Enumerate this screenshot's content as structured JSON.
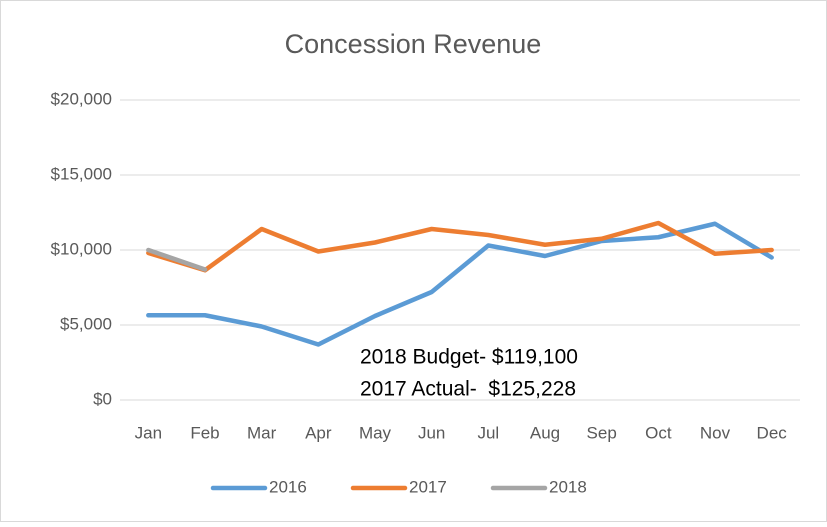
{
  "chart_data": {
    "type": "line",
    "title": "Concession Revenue",
    "categories": [
      "Jan",
      "Feb",
      "Mar",
      "Apr",
      "May",
      "Jun",
      "Jul",
      "Aug",
      "Sep",
      "Oct",
      "Nov",
      "Dec"
    ],
    "series": [
      {
        "name": "2016",
        "color": "#5b9bd5",
        "values": [
          5650,
          5650,
          4900,
          3700,
          5600,
          7200,
          10300,
          9600,
          10600,
          10850,
          11750,
          9500
        ]
      },
      {
        "name": "2017",
        "color": "#ed7d31",
        "values": [
          9800,
          8650,
          11400,
          9900,
          10500,
          11400,
          11000,
          10350,
          10750,
          11800,
          9750,
          10000
        ]
      },
      {
        "name": "2018",
        "color": "#a5a5a5",
        "values": [
          10000,
          8700,
          null,
          null,
          null,
          null,
          null,
          null,
          null,
          null,
          null,
          null
        ]
      }
    ],
    "ylim": [
      0,
      20000
    ],
    "yticks": [
      {
        "value": 0,
        "label": "$0"
      },
      {
        "value": 5000,
        "label": "$5,000"
      },
      {
        "value": 10000,
        "label": "$10,000"
      },
      {
        "value": 15000,
        "label": "$15,000"
      },
      {
        "value": 20000,
        "label": "$20,000"
      }
    ],
    "grid": true,
    "legend": "bottom",
    "annotations": [
      "2018 Budget- $119,100",
      "2017 Actual-  $125,228"
    ]
  }
}
